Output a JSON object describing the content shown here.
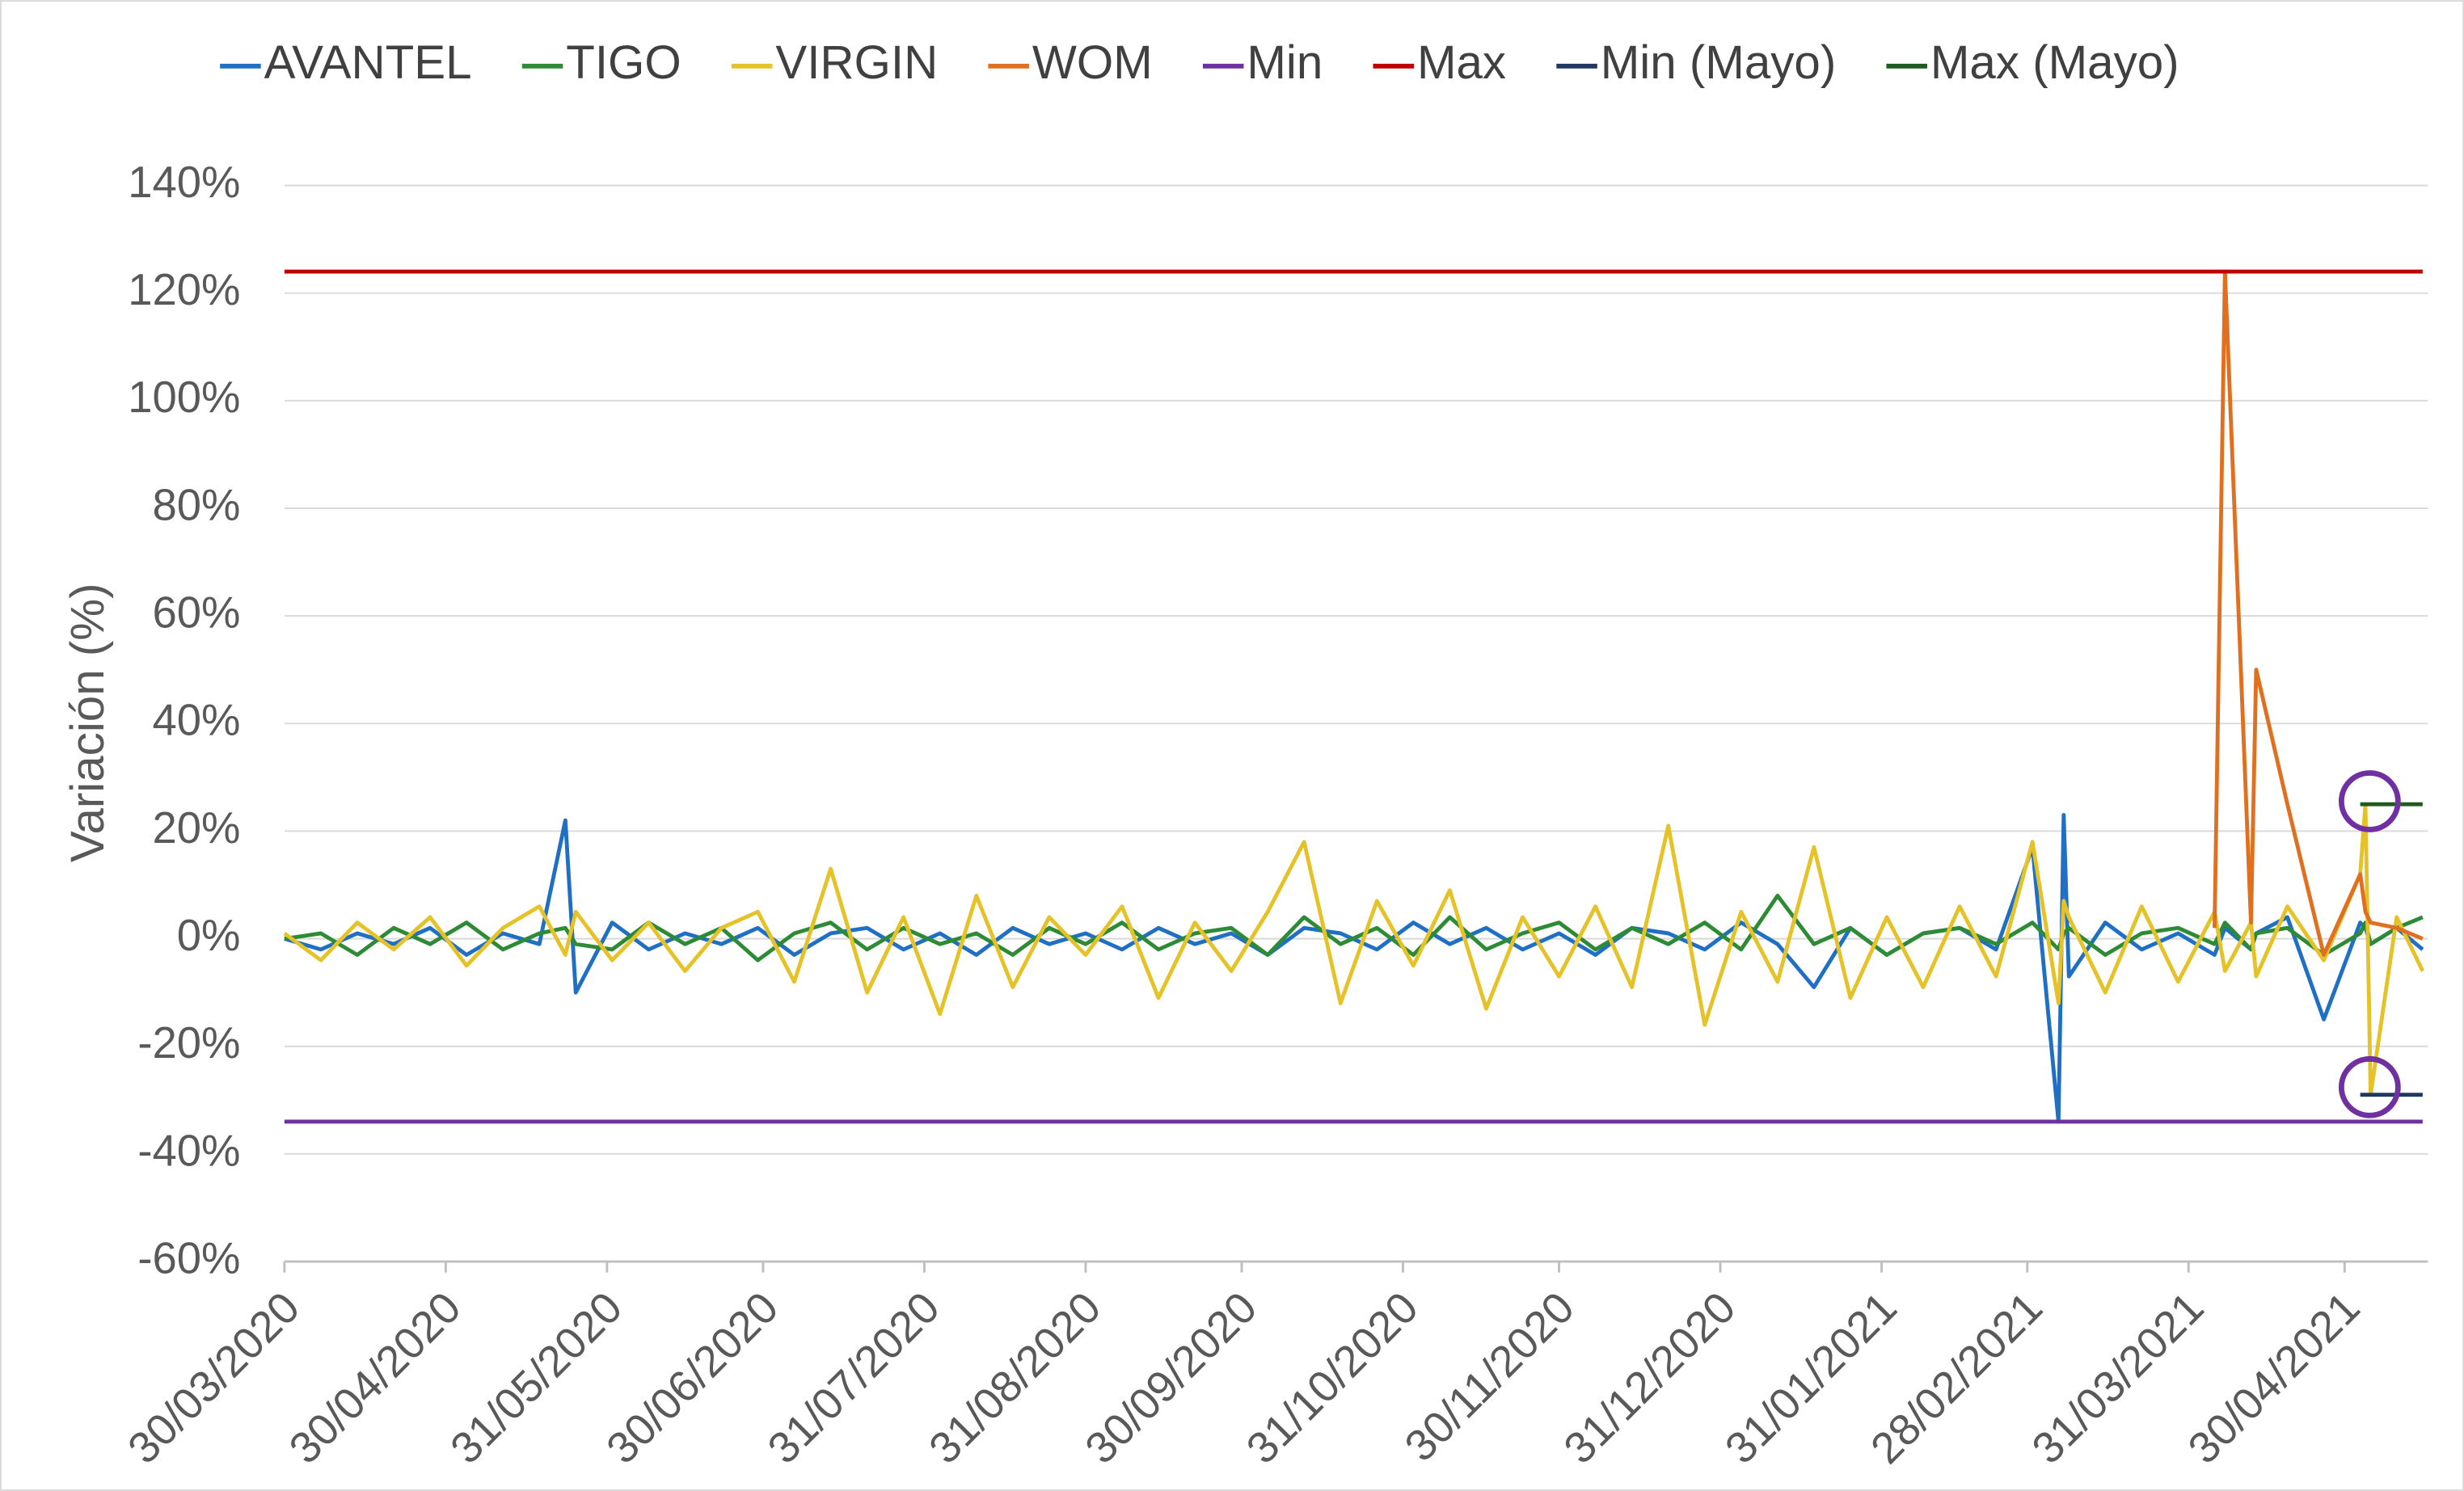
{
  "chart_data": {
    "type": "line",
    "y_label": "Variación (%)",
    "x": [
      "30/03/2020",
      "06/04/2020",
      "13/04/2020",
      "20/04/2020",
      "27/04/2020",
      "04/05/2020",
      "11/05/2020",
      "18/05/2020",
      "23/05/2020",
      "25/05/2020",
      "01/06/2020",
      "08/06/2020",
      "15/06/2020",
      "22/06/2020",
      "29/06/2020",
      "06/07/2020",
      "13/07/2020",
      "20/07/2020",
      "27/07/2020",
      "03/08/2020",
      "10/08/2020",
      "17/08/2020",
      "24/08/2020",
      "31/08/2020",
      "07/09/2020",
      "14/09/2020",
      "21/09/2020",
      "28/09/2020",
      "05/10/2020",
      "12/10/2020",
      "19/10/2020",
      "26/10/2020",
      "02/11/2020",
      "09/11/2020",
      "16/11/2020",
      "23/11/2020",
      "30/11/2020",
      "07/12/2020",
      "14/12/2020",
      "21/12/2020",
      "28/12/2020",
      "04/01/2021",
      "11/01/2021",
      "18/01/2021",
      "25/01/2021",
      "01/02/2021",
      "08/02/2021",
      "15/02/2021",
      "22/02/2021",
      "01/03/2021",
      "06/03/2021",
      "07/03/2021",
      "08/03/2021",
      "15/03/2021",
      "22/03/2021",
      "29/03/2021",
      "05/04/2021",
      "07/04/2021",
      "12/04/2021",
      "13/04/2021",
      "19/04/2021",
      "26/04/2021",
      "03/05/2021",
      "04/05/2021",
      "05/05/2021",
      "10/05/2021",
      "15/05/2021"
    ],
    "series": [
      {
        "name": "AVANTEL",
        "color": "#1f6fc4",
        "values": [
          0,
          -2,
          1,
          -1,
          2,
          -3,
          1,
          -1,
          22,
          -10,
          3,
          -2,
          1,
          -1,
          2,
          -3,
          1,
          2,
          -2,
          1,
          -3,
          2,
          -1,
          1,
          -2,
          2,
          -1,
          1,
          -3,
          2,
          1,
          -2,
          3,
          -1,
          2,
          -2,
          1,
          -3,
          2,
          1,
          -2,
          3,
          -1,
          -9,
          2,
          -3,
          1,
          2,
          -2,
          17,
          -34,
          23,
          -7,
          3,
          -2,
          1,
          -3,
          2,
          -2,
          1,
          4,
          -15,
          3,
          2,
          -1,
          2,
          -2
        ]
      },
      {
        "name": "TIGO",
        "color": "#2e8b35",
        "values": [
          0,
          1,
          -3,
          2,
          -1,
          3,
          -2,
          1,
          2,
          -1,
          -2,
          3,
          -1,
          2,
          -4,
          1,
          3,
          -2,
          2,
          -1,
          1,
          -3,
          2,
          -1,
          3,
          -2,
          1,
          2,
          -3,
          4,
          -1,
          2,
          -3,
          4,
          -2,
          1,
          3,
          -2,
          2,
          -1,
          3,
          -2,
          8,
          -1,
          2,
          -3,
          1,
          2,
          -1,
          3,
          -2,
          1,
          2,
          -3,
          1,
          2,
          -1,
          3,
          -2,
          1,
          2,
          -3,
          1,
          3,
          -1,
          2,
          4
        ]
      },
      {
        "name": "VIRGIN",
        "color": "#e6c229",
        "values": [
          1,
          -4,
          3,
          -2,
          4,
          -5,
          2,
          6,
          -3,
          5,
          -4,
          3,
          -6,
          2,
          5,
          -8,
          13,
          -10,
          4,
          -14,
          8,
          -9,
          4,
          -3,
          6,
          -11,
          3,
          -6,
          5,
          18,
          -12,
          7,
          -5,
          9,
          -13,
          4,
          -7,
          6,
          -9,
          21,
          -16,
          5,
          -8,
          17,
          -11,
          4,
          -9,
          6,
          -7,
          18,
          -12,
          7,
          4,
          -10,
          6,
          -8,
          5,
          -6,
          3,
          -7,
          6,
          -4,
          12,
          25,
          -29,
          4,
          -6
        ]
      },
      {
        "name": "WOM",
        "color": "#e07020",
        "values": [
          null,
          null,
          null,
          null,
          null,
          null,
          null,
          null,
          null,
          null,
          null,
          null,
          null,
          null,
          null,
          null,
          null,
          null,
          null,
          null,
          null,
          null,
          null,
          null,
          null,
          null,
          null,
          null,
          null,
          null,
          null,
          null,
          null,
          null,
          null,
          null,
          null,
          null,
          null,
          null,
          null,
          null,
          null,
          null,
          null,
          null,
          null,
          null,
          null,
          null,
          null,
          null,
          null,
          null,
          null,
          null,
          2,
          124,
          3,
          50,
          25,
          -3,
          12,
          5,
          3,
          2,
          0
        ]
      },
      {
        "name": "Min",
        "color": "#7030a0",
        "values": [
          -34,
          -34,
          -34,
          -34,
          -34,
          -34,
          -34,
          -34,
          -34,
          -34,
          -34,
          -34,
          -34,
          -34,
          -34,
          -34,
          -34,
          -34,
          -34,
          -34,
          -34,
          -34,
          -34,
          -34,
          -34,
          -34,
          -34,
          -34,
          -34,
          -34,
          -34,
          -34,
          -34,
          -34,
          -34,
          -34,
          -34,
          -34,
          -34,
          -34,
          -34,
          -34,
          -34,
          -34,
          -34,
          -34,
          -34,
          -34,
          -34,
          -34,
          -34,
          -34,
          -34,
          -34,
          -34,
          -34,
          -34,
          -34,
          -34,
          -34,
          -34,
          -34,
          -34,
          -34,
          -34,
          -34,
          -34
        ]
      },
      {
        "name": "Max",
        "color": "#c00000",
        "values": [
          124,
          124,
          124,
          124,
          124,
          124,
          124,
          124,
          124,
          124,
          124,
          124,
          124,
          124,
          124,
          124,
          124,
          124,
          124,
          124,
          124,
          124,
          124,
          124,
          124,
          124,
          124,
          124,
          124,
          124,
          124,
          124,
          124,
          124,
          124,
          124,
          124,
          124,
          124,
          124,
          124,
          124,
          124,
          124,
          124,
          124,
          124,
          124,
          124,
          124,
          124,
          124,
          124,
          124,
          124,
          124,
          124,
          124,
          124,
          124,
          124,
          124,
          124,
          124,
          124,
          124,
          124
        ]
      },
      {
        "name": "Min (Mayo)",
        "color": "#1f3864",
        "values": [
          null,
          null,
          null,
          null,
          null,
          null,
          null,
          null,
          null,
          null,
          null,
          null,
          null,
          null,
          null,
          null,
          null,
          null,
          null,
          null,
          null,
          null,
          null,
          null,
          null,
          null,
          null,
          null,
          null,
          null,
          null,
          null,
          null,
          null,
          null,
          null,
          null,
          null,
          null,
          null,
          null,
          null,
          null,
          null,
          null,
          null,
          null,
          null,
          null,
          null,
          null,
          null,
          null,
          null,
          null,
          null,
          null,
          null,
          null,
          null,
          null,
          null,
          -29,
          -29,
          -29,
          -29,
          -29
        ]
      },
      {
        "name": "Max (Mayo)",
        "color": "#1e5c1e",
        "values": [
          null,
          null,
          null,
          null,
          null,
          null,
          null,
          null,
          null,
          null,
          null,
          null,
          null,
          null,
          null,
          null,
          null,
          null,
          null,
          null,
          null,
          null,
          null,
          null,
          null,
          null,
          null,
          null,
          null,
          null,
          null,
          null,
          null,
          null,
          null,
          null,
          null,
          null,
          null,
          null,
          null,
          null,
          null,
          null,
          null,
          null,
          null,
          null,
          null,
          null,
          null,
          null,
          null,
          null,
          null,
          null,
          null,
          null,
          null,
          null,
          null,
          null,
          25,
          25,
          25,
          25,
          25
        ]
      }
    ],
    "xlim": [
      "30/03/2020",
      "16/05/2021"
    ],
    "xticks": [
      "30/03/2020",
      "30/04/2020",
      "31/05/2020",
      "30/06/2020",
      "31/07/2020",
      "31/08/2020",
      "30/09/2020",
      "31/10/2020",
      "30/11/2020",
      "31/12/2020",
      "31/01/2021",
      "28/02/2021",
      "31/03/2021",
      "30/04/2021"
    ],
    "ylim": [
      -60,
      140
    ],
    "yticks": [
      {
        "value": -60,
        "label": "-60%"
      },
      {
        "value": -40,
        "label": "-40%"
      },
      {
        "value": -20,
        "label": "-20%"
      },
      {
        "value": 0,
        "label": "0%"
      },
      {
        "value": 20,
        "label": "20%"
      },
      {
        "value": 40,
        "label": "40%"
      },
      {
        "value": 60,
        "label": "60%"
      },
      {
        "value": 80,
        "label": "80%"
      },
      {
        "value": 100,
        "label": "100%"
      },
      {
        "value": 120,
        "label": "120%"
      },
      {
        "value": 140,
        "label": "140%"
      }
    ],
    "grid": true,
    "legend": "top"
  }
}
